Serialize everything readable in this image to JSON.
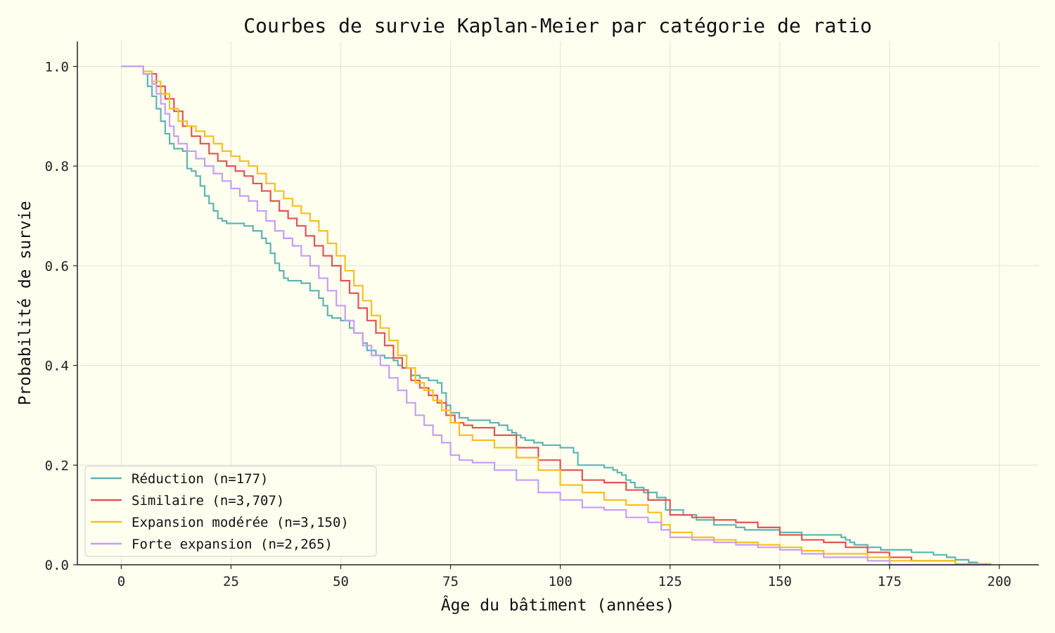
{
  "chart_data": {
    "type": "line",
    "title": "Courbes de survie Kaplan-Meier par catégorie de ratio",
    "xlabel": "Âge du bâtiment (années)",
    "ylabel": "Probabilité de survie",
    "xlim": [
      -10,
      209
    ],
    "ylim": [
      0,
      1.05
    ],
    "xticks": [
      0,
      25,
      50,
      75,
      100,
      125,
      150,
      175,
      200
    ],
    "xtick_labels": [
      "0",
      "25",
      "50",
      "75",
      "100",
      "125",
      "150",
      "175",
      "200"
    ],
    "yticks": [
      0.0,
      0.2,
      0.4,
      0.6,
      0.8,
      1.0
    ],
    "ytick_labels": [
      "0.0",
      "0.2",
      "0.4",
      "0.6",
      "0.8",
      "1.0"
    ],
    "grid": true,
    "legend_position": "lower-left",
    "step": true,
    "series": [
      {
        "name": "Réduction (n=177)",
        "color": "#5fb3b3",
        "x": [
          0,
          5,
          6,
          7,
          8,
          9,
          10,
          11,
          12,
          13,
          14,
          15,
          16,
          17,
          18,
          19,
          20,
          21,
          22,
          23,
          24,
          26,
          28,
          30,
          32,
          33,
          34,
          35,
          36,
          37,
          38,
          39,
          41,
          43,
          45,
          46,
          47,
          48,
          50,
          52,
          53,
          54,
          55,
          56,
          58,
          60,
          62,
          63,
          64,
          66,
          68,
          70,
          72,
          73,
          74,
          75,
          77,
          79,
          84,
          86,
          88,
          89,
          90,
          91,
          92,
          94,
          96,
          100,
          103,
          104,
          110,
          112,
          113,
          114,
          115,
          116,
          117,
          119,
          122,
          124,
          128,
          131,
          135,
          140,
          142,
          150,
          155,
          160,
          164,
          165,
          166,
          167,
          170,
          173,
          180,
          185,
          188,
          190,
          193,
          195
        ],
        "y": [
          1.0,
          0.985,
          0.96,
          0.94,
          0.915,
          0.89,
          0.865,
          0.845,
          0.835,
          0.835,
          0.83,
          0.795,
          0.79,
          0.78,
          0.76,
          0.74,
          0.725,
          0.71,
          0.695,
          0.69,
          0.685,
          0.685,
          0.68,
          0.67,
          0.655,
          0.645,
          0.625,
          0.605,
          0.59,
          0.575,
          0.57,
          0.57,
          0.565,
          0.55,
          0.535,
          0.52,
          0.5,
          0.495,
          0.49,
          0.475,
          0.465,
          0.465,
          0.445,
          0.43,
          0.42,
          0.415,
          0.41,
          0.4,
          0.395,
          0.38,
          0.375,
          0.37,
          0.365,
          0.345,
          0.32,
          0.305,
          0.295,
          0.29,
          0.285,
          0.28,
          0.27,
          0.265,
          0.26,
          0.255,
          0.25,
          0.245,
          0.24,
          0.235,
          0.225,
          0.2,
          0.195,
          0.19,
          0.185,
          0.18,
          0.17,
          0.165,
          0.155,
          0.145,
          0.135,
          0.11,
          0.1,
          0.09,
          0.08,
          0.075,
          0.07,
          0.065,
          0.06,
          0.06,
          0.055,
          0.05,
          0.045,
          0.04,
          0.035,
          0.03,
          0.025,
          0.02,
          0.015,
          0.01,
          0.005,
          0.0
        ]
      },
      {
        "name": "Similaire (n=3,707)",
        "color": "#e05555",
        "x": [
          0,
          5,
          8,
          10,
          12,
          14,
          16,
          18,
          20,
          22,
          24,
          26,
          28,
          30,
          32,
          34,
          36,
          38,
          40,
          42,
          44,
          46,
          48,
          50,
          52,
          54,
          56,
          58,
          60,
          62,
          64,
          66,
          68,
          70,
          72,
          74,
          76,
          78,
          80,
          85,
          90,
          95,
          100,
          105,
          110,
          115,
          120,
          125,
          130,
          135,
          140,
          145,
          150,
          155,
          160,
          165,
          170,
          175,
          180,
          190
        ],
        "y": [
          1.0,
          0.985,
          0.96,
          0.935,
          0.91,
          0.88,
          0.86,
          0.845,
          0.825,
          0.81,
          0.8,
          0.79,
          0.78,
          0.765,
          0.75,
          0.73,
          0.71,
          0.695,
          0.68,
          0.66,
          0.64,
          0.62,
          0.6,
          0.57,
          0.545,
          0.515,
          0.49,
          0.465,
          0.44,
          0.415,
          0.395,
          0.37,
          0.355,
          0.34,
          0.325,
          0.3,
          0.285,
          0.28,
          0.275,
          0.26,
          0.235,
          0.21,
          0.19,
          0.17,
          0.165,
          0.15,
          0.13,
          0.1,
          0.095,
          0.09,
          0.085,
          0.075,
          0.06,
          0.05,
          0.045,
          0.035,
          0.025,
          0.015,
          0.008,
          0.0
        ]
      },
      {
        "name": "Expansion modérée (n=3,150)",
        "color": "#f5c01f",
        "x": [
          0,
          5,
          7,
          9,
          11,
          13,
          15,
          17,
          19,
          21,
          23,
          25,
          27,
          29,
          31,
          33,
          35,
          37,
          39,
          41,
          43,
          45,
          47,
          49,
          51,
          53,
          55,
          57,
          59,
          61,
          63,
          65,
          67,
          69,
          71,
          73,
          75,
          77,
          80,
          85,
          90,
          95,
          100,
          105,
          110,
          115,
          120,
          123,
          125,
          130,
          135,
          140,
          145,
          150,
          155,
          160,
          170,
          175,
          190,
          198
        ],
        "y": [
          1.0,
          0.99,
          0.97,
          0.945,
          0.915,
          0.89,
          0.88,
          0.87,
          0.86,
          0.845,
          0.83,
          0.82,
          0.81,
          0.8,
          0.785,
          0.765,
          0.75,
          0.735,
          0.72,
          0.705,
          0.69,
          0.67,
          0.645,
          0.62,
          0.59,
          0.56,
          0.53,
          0.5,
          0.475,
          0.45,
          0.42,
          0.395,
          0.365,
          0.35,
          0.33,
          0.31,
          0.285,
          0.26,
          0.25,
          0.235,
          0.215,
          0.19,
          0.16,
          0.145,
          0.13,
          0.12,
          0.105,
          0.08,
          0.065,
          0.055,
          0.05,
          0.045,
          0.04,
          0.035,
          0.028,
          0.022,
          0.015,
          0.008,
          0.002,
          0.0
        ]
      },
      {
        "name": "Forte expansion (n=2,265)",
        "color": "#c79ef5",
        "x": [
          0,
          5,
          7,
          8,
          9,
          10,
          11,
          12,
          13,
          15,
          17,
          19,
          21,
          23,
          25,
          27,
          29,
          31,
          33,
          35,
          37,
          39,
          41,
          43,
          45,
          47,
          49,
          51,
          53,
          55,
          57,
          59,
          61,
          63,
          65,
          67,
          69,
          71,
          73,
          75,
          77,
          80,
          85,
          90,
          95,
          100,
          105,
          110,
          115,
          120,
          123,
          125,
          130,
          135,
          140,
          145,
          150,
          155,
          160,
          170,
          175,
          190,
          198
        ],
        "y": [
          1.0,
          0.985,
          0.965,
          0.945,
          0.925,
          0.905,
          0.88,
          0.86,
          0.845,
          0.83,
          0.815,
          0.8,
          0.785,
          0.77,
          0.755,
          0.74,
          0.73,
          0.71,
          0.69,
          0.67,
          0.655,
          0.64,
          0.62,
          0.6,
          0.575,
          0.55,
          0.52,
          0.49,
          0.465,
          0.44,
          0.42,
          0.4,
          0.375,
          0.35,
          0.325,
          0.3,
          0.28,
          0.26,
          0.245,
          0.22,
          0.21,
          0.205,
          0.19,
          0.17,
          0.145,
          0.13,
          0.115,
          0.11,
          0.095,
          0.085,
          0.07,
          0.055,
          0.05,
          0.045,
          0.04,
          0.035,
          0.03,
          0.022,
          0.015,
          0.008,
          0.0,
          0.0,
          0.0
        ]
      }
    ]
  }
}
